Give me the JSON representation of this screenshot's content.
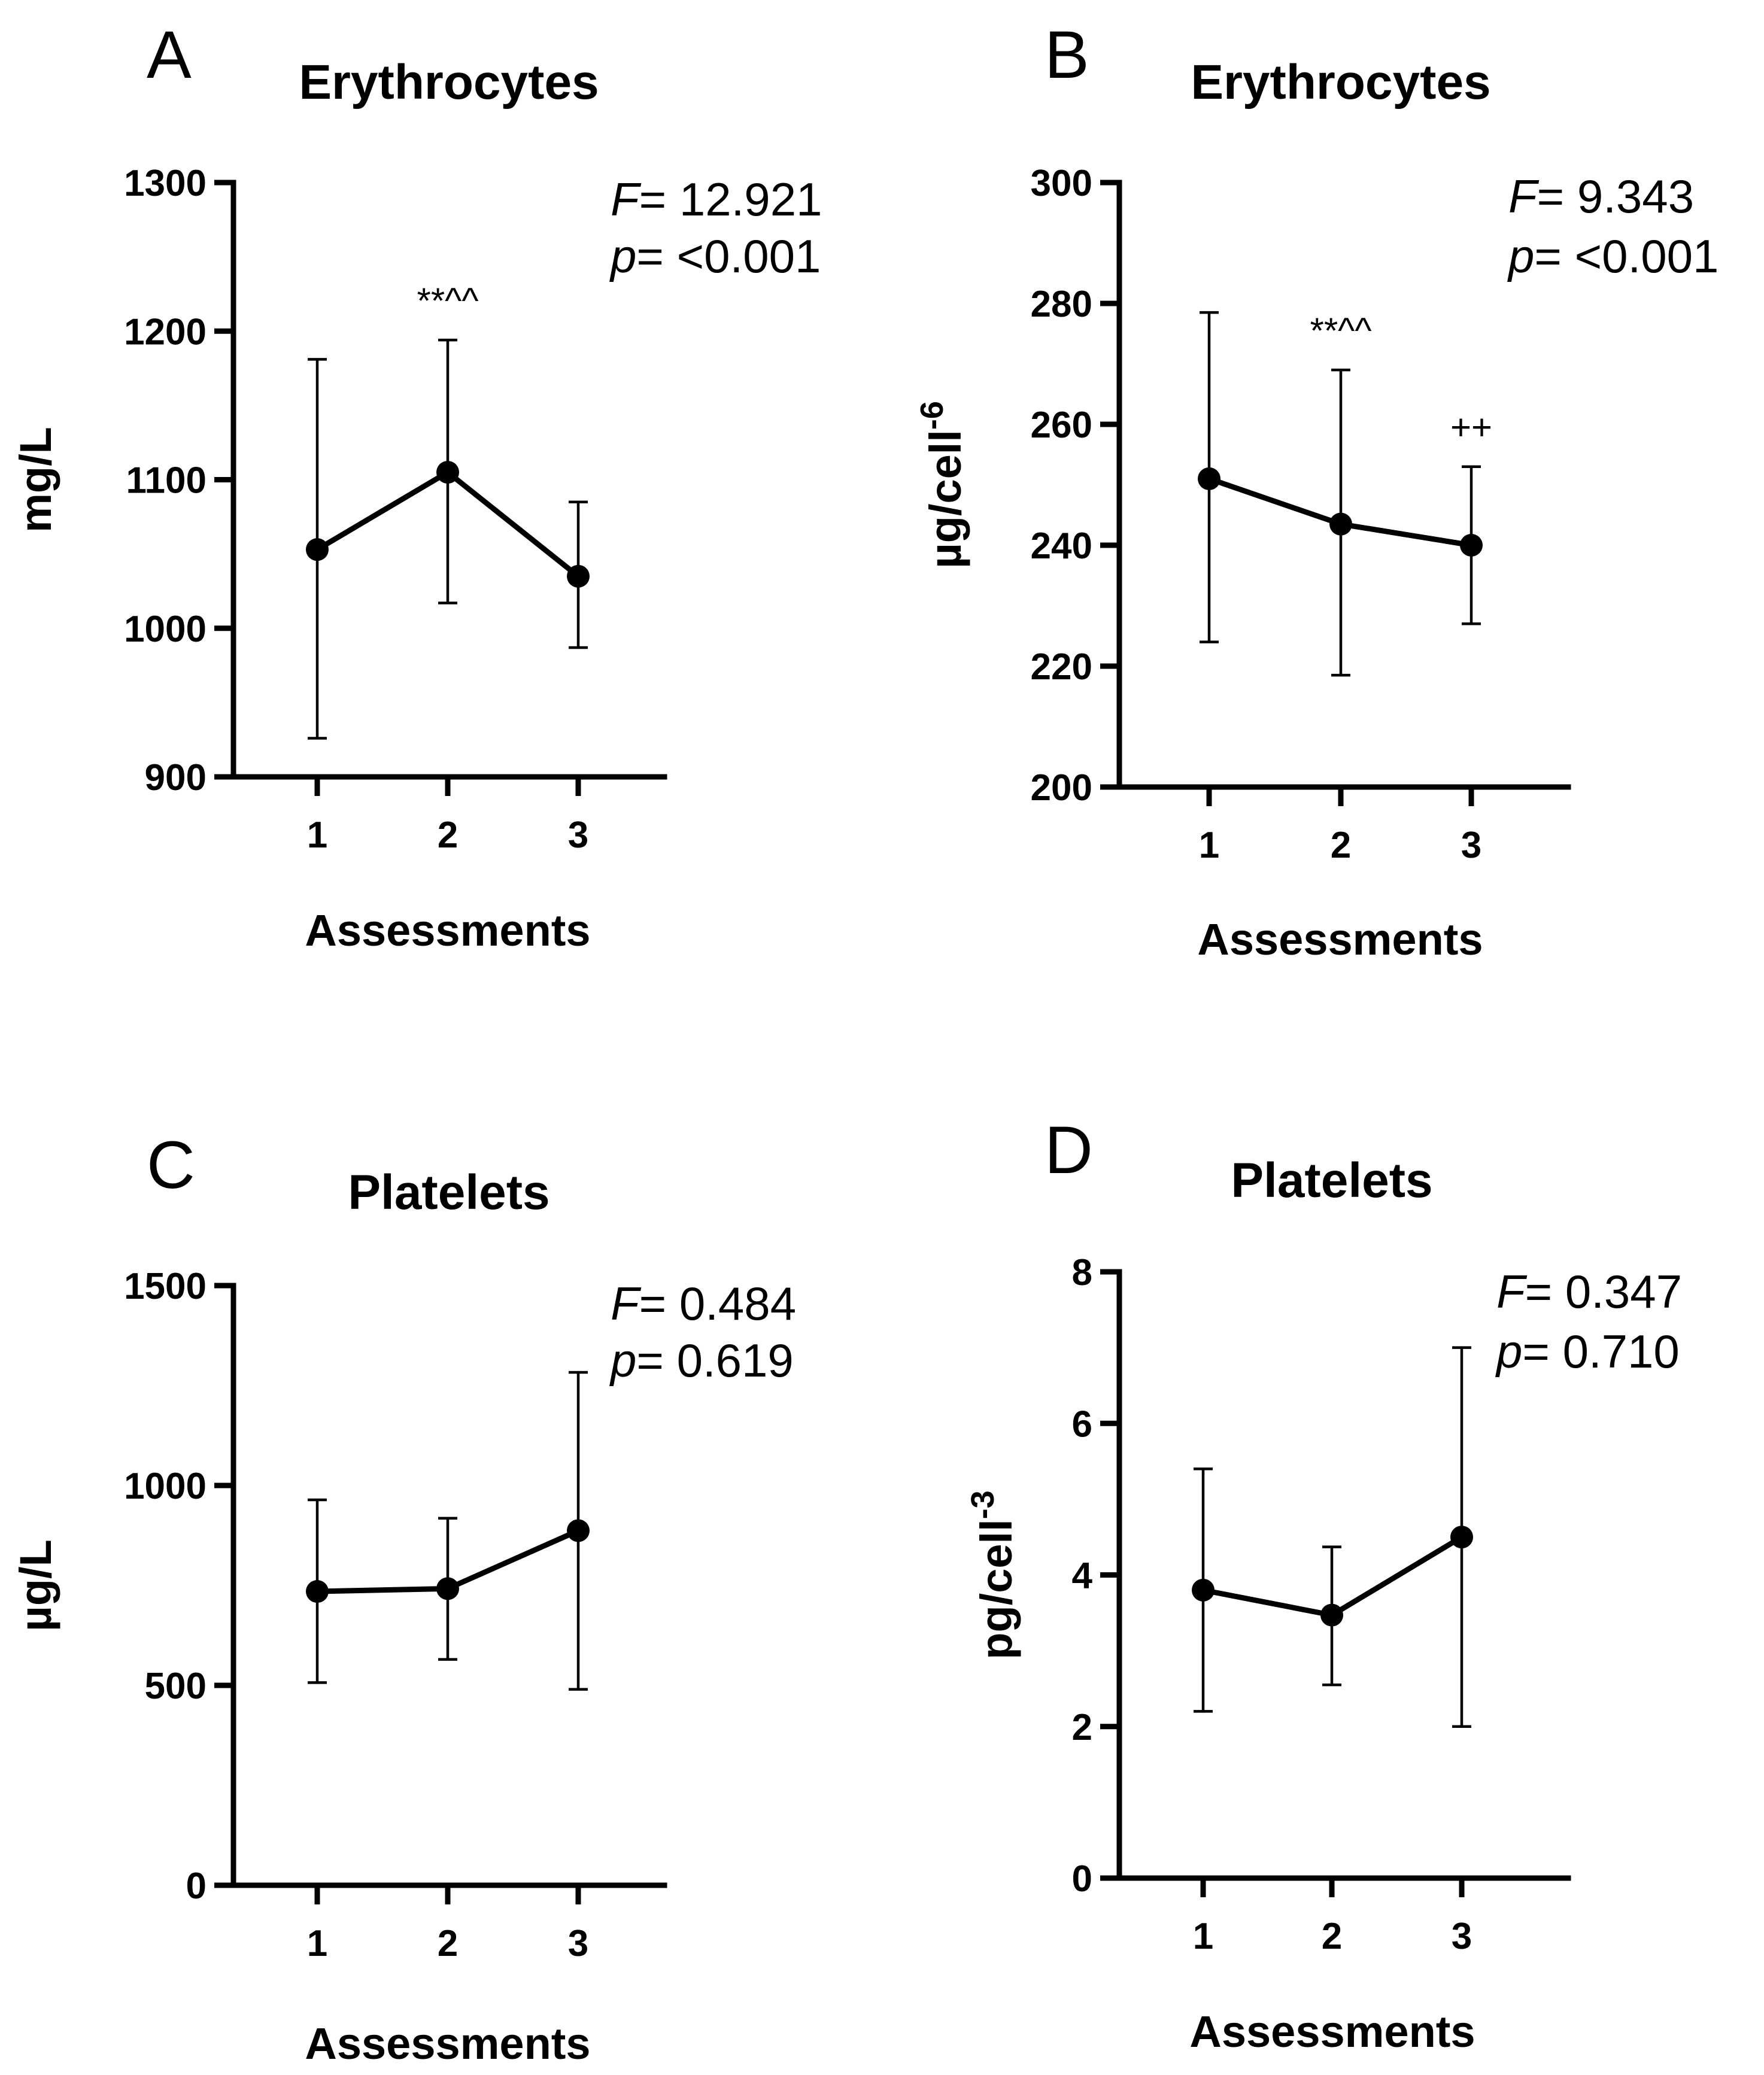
{
  "chart_data": [
    {
      "panel": "A",
      "type": "line",
      "title": "Erythrocytes",
      "xlabel": "Assessments",
      "ylabel": "mg/L",
      "ylabel_sup": "",
      "categories": [
        "1",
        "2",
        "3"
      ],
      "values": [
        1053,
        1105,
        1035
      ],
      "error_low": [
        926,
        1017,
        987
      ],
      "error_high": [
        1181,
        1194,
        1085
      ],
      "ylim": [
        900,
        1300
      ],
      "yticks": [
        900,
        1000,
        1100,
        1200,
        1300
      ],
      "stat_F_label": "F",
      "stat_F_value": "= 12.921",
      "stat_p_label": "p",
      "stat_p_value": "= <0.001",
      "annotations": [
        {
          "category": "2",
          "text": "**^^"
        }
      ]
    },
    {
      "panel": "B",
      "type": "line",
      "title": "Erythrocytes",
      "xlabel": "Assessments",
      "ylabel": "µg/cell",
      "ylabel_sup": "-6",
      "categories": [
        "1",
        "2",
        "3"
      ],
      "values": [
        251,
        243.5,
        240
      ],
      "error_low": [
        224,
        218.5,
        227
      ],
      "error_high": [
        278.5,
        269,
        253
      ],
      "ylim": [
        200,
        300
      ],
      "yticks": [
        200,
        220,
        240,
        260,
        280,
        300
      ],
      "stat_F_label": "F",
      "stat_F_value": "= 9.343",
      "stat_p_label": "p",
      "stat_p_value": "= <0.001",
      "annotations": [
        {
          "category": "2",
          "text": "**^^"
        },
        {
          "category": "3",
          "text": "++"
        }
      ]
    },
    {
      "panel": "C",
      "type": "line",
      "title": "Platelets",
      "xlabel": "Assessments",
      "ylabel": "µg/L",
      "ylabel_sup": "",
      "categories": [
        "1",
        "2",
        "3"
      ],
      "values": [
        735,
        742,
        887
      ],
      "error_low": [
        507,
        565,
        490
      ],
      "error_high": [
        964,
        918,
        1283
      ],
      "ylim": [
        0,
        1500
      ],
      "yticks": [
        0,
        500,
        1000,
        1500
      ],
      "stat_F_label": "F",
      "stat_F_value": "= 0.484",
      "stat_p_label": "p",
      "stat_p_value": "= 0.619",
      "annotations": []
    },
    {
      "panel": "D",
      "type": "line",
      "title": "Platelets",
      "xlabel": "Assessments",
      "ylabel": "pg/cell",
      "ylabel_sup": "-3",
      "categories": [
        "1",
        "2",
        "3"
      ],
      "values": [
        3.8,
        3.47,
        4.5
      ],
      "error_low": [
        2.2,
        2.55,
        2.0
      ],
      "error_high": [
        5.4,
        4.37,
        7.0
      ],
      "ylim": [
        0,
        8
      ],
      "yticks": [
        0,
        2,
        4,
        6,
        8
      ],
      "stat_F_label": "F",
      "stat_F_value": "= 0.347",
      "stat_p_label": "p",
      "stat_p_value": "= 0.710",
      "annotations": []
    }
  ]
}
